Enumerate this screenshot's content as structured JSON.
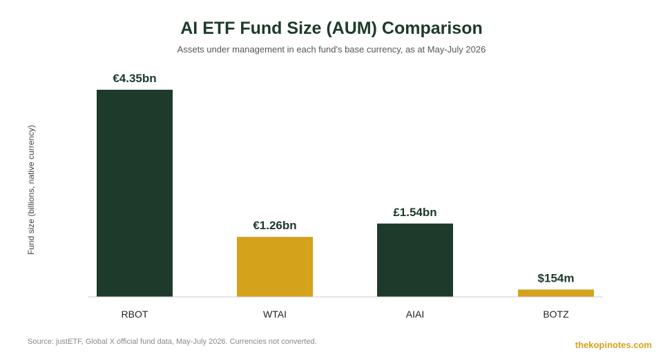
{
  "chart_data": {
    "type": "bar",
    "title": "AI ETF Fund Size (AUM) Comparison",
    "subtitle": "Assets under management in each fund's base currency, as at May-July 2026",
    "ylabel": "Fund size (billions, native currency)",
    "xlabel": "",
    "categories": [
      "RBOT",
      "WTAI",
      "AIAI",
      "BOTZ"
    ],
    "values": [
      4.35,
      1.26,
      1.54,
      0.154
    ],
    "value_labels": [
      "€4.35bn",
      "€1.26bn",
      "£1.54bn",
      "$154m"
    ],
    "bar_colors": [
      "#1d3a2a",
      "#d4a21b",
      "#1d3a2a",
      "#d4a21b"
    ],
    "ylim": [
      0,
      4.35
    ],
    "grid": false,
    "legend": "none"
  },
  "footer": {
    "source": "Source: justETF, Global X official fund data, May-July 2026. Currencies not converted.",
    "watermark": "thekopinotes.com"
  }
}
